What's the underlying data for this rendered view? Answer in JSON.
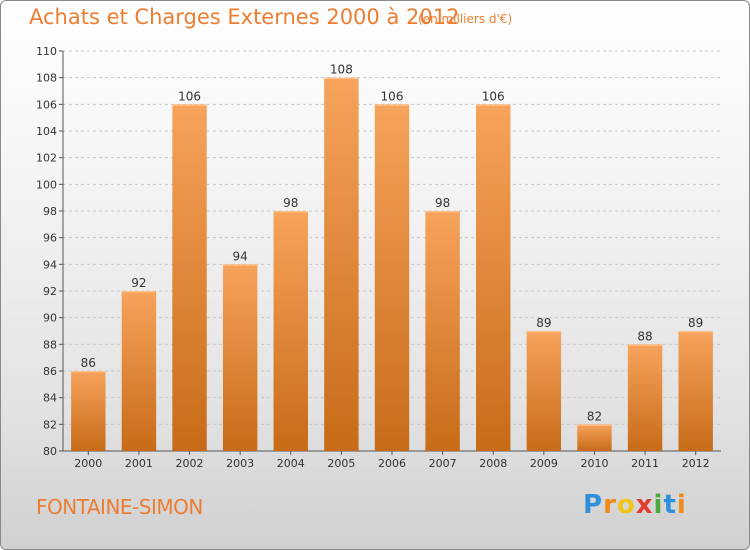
{
  "header": {
    "title": "Achats et Charges Externes 2000 à 2012",
    "unit": "(en milliers d'€)"
  },
  "footer": {
    "place": "FONTAINE-SIMON",
    "logo_letters": [
      "P",
      "r",
      "o",
      "x",
      "i",
      "t",
      "i"
    ],
    "logo_colors": [
      "#2f8fd8",
      "#f08a1c",
      "#f0c419",
      "#e23a2c",
      "#4aa83d",
      "#2f8fd8",
      "#f08a1c"
    ]
  },
  "colors": {
    "bar_top": "#f7a35c",
    "bar_bottom": "#c76b17",
    "grid": "#c8c8c8",
    "axis_text": "#333333",
    "accent": "#ed7d31"
  },
  "chart_data": {
    "type": "bar",
    "title": "Achats et Charges Externes 2000 à 2012",
    "categories": [
      "2000",
      "2001",
      "2002",
      "2003",
      "2004",
      "2005",
      "2006",
      "2007",
      "2008",
      "2009",
      "2010",
      "2011",
      "2012"
    ],
    "values": [
      86,
      92,
      106,
      94,
      98,
      108,
      106,
      98,
      106,
      89,
      82,
      88,
      89
    ],
    "ylim": [
      80,
      110
    ],
    "yticks": [
      80,
      82,
      84,
      86,
      88,
      90,
      92,
      94,
      96,
      98,
      100,
      102,
      104,
      106,
      108,
      110
    ],
    "grid": true,
    "data_labels": true
  }
}
